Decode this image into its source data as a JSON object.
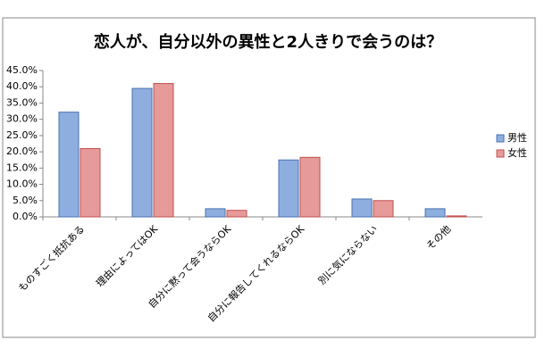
{
  "chart_data": {
    "type": "bar",
    "title": "恋人が、自分以外の異性と2人きりで会うのは？",
    "categories": [
      "ものすごく抵抗ある",
      "理由によってはOK",
      "自分に黙って会うならOK",
      "自分に報告してくれるならOK",
      "別に気にならない",
      "その他"
    ],
    "series": [
      {
        "name": "男性",
        "color": "#8eaee0",
        "values": [
          32.2,
          39.5,
          2.5,
          17.5,
          5.5,
          2.5
        ]
      },
      {
        "name": "女性",
        "color": "#e69a9a",
        "values": [
          21.0,
          41.0,
          2.0,
          18.3,
          5.0,
          0.3
        ]
      }
    ],
    "ylim": [
      0,
      45
    ],
    "yticks": [
      {
        "value": 0,
        "label": "0.0%"
      },
      {
        "value": 5,
        "label": "5.0%"
      },
      {
        "value": 10,
        "label": "10.0%"
      },
      {
        "value": 15,
        "label": "15.0%"
      },
      {
        "value": 20,
        "label": "20.0%"
      },
      {
        "value": 25,
        "label": "25.0%"
      },
      {
        "value": 30,
        "label": "30.0%"
      },
      {
        "value": 35,
        "label": "35.0%"
      },
      {
        "value": 40,
        "label": "40.0%"
      },
      {
        "value": 45,
        "label": "45.0%"
      }
    ],
    "grid": false,
    "legend": "right"
  }
}
